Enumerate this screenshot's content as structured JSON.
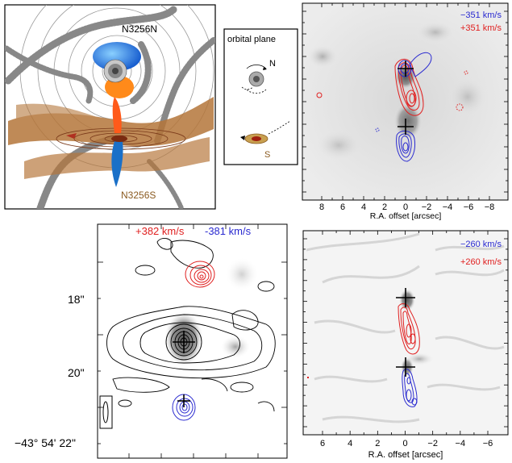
{
  "panel_a": {
    "label_north": "N3256N",
    "label_south": "N3256S"
  },
  "inset": {
    "title": "orbital plane",
    "label_n": "N",
    "label_s": "S"
  },
  "panel_b": {
    "vel_blue": "−351 km/s",
    "vel_red": "+351 km/s",
    "x_ticks": [
      "8",
      "6",
      "4",
      "2",
      "0",
      "−2",
      "−4",
      "−6",
      "−8"
    ],
    "xlabel": "R.A. offset [arcsec]"
  },
  "panel_c": {
    "vel_red": "+382 km/s",
    "vel_blue": "-381 km/s",
    "y_ticks": [
      "18\"",
      "20\""
    ],
    "dec_label": "−43° 54' 22\""
  },
  "panel_d": {
    "vel_blue": "−260 km/s",
    "vel_red": "+260 km/s",
    "x_ticks": [
      "6",
      "4",
      "2",
      "0",
      "−2",
      "−4",
      "−6"
    ],
    "xlabel": "R.A. offset [arcsec]"
  },
  "colors": {
    "red": "#e02020",
    "blue": "#2a2ad0",
    "brown": "#b5763a",
    "grey": "#808080"
  }
}
